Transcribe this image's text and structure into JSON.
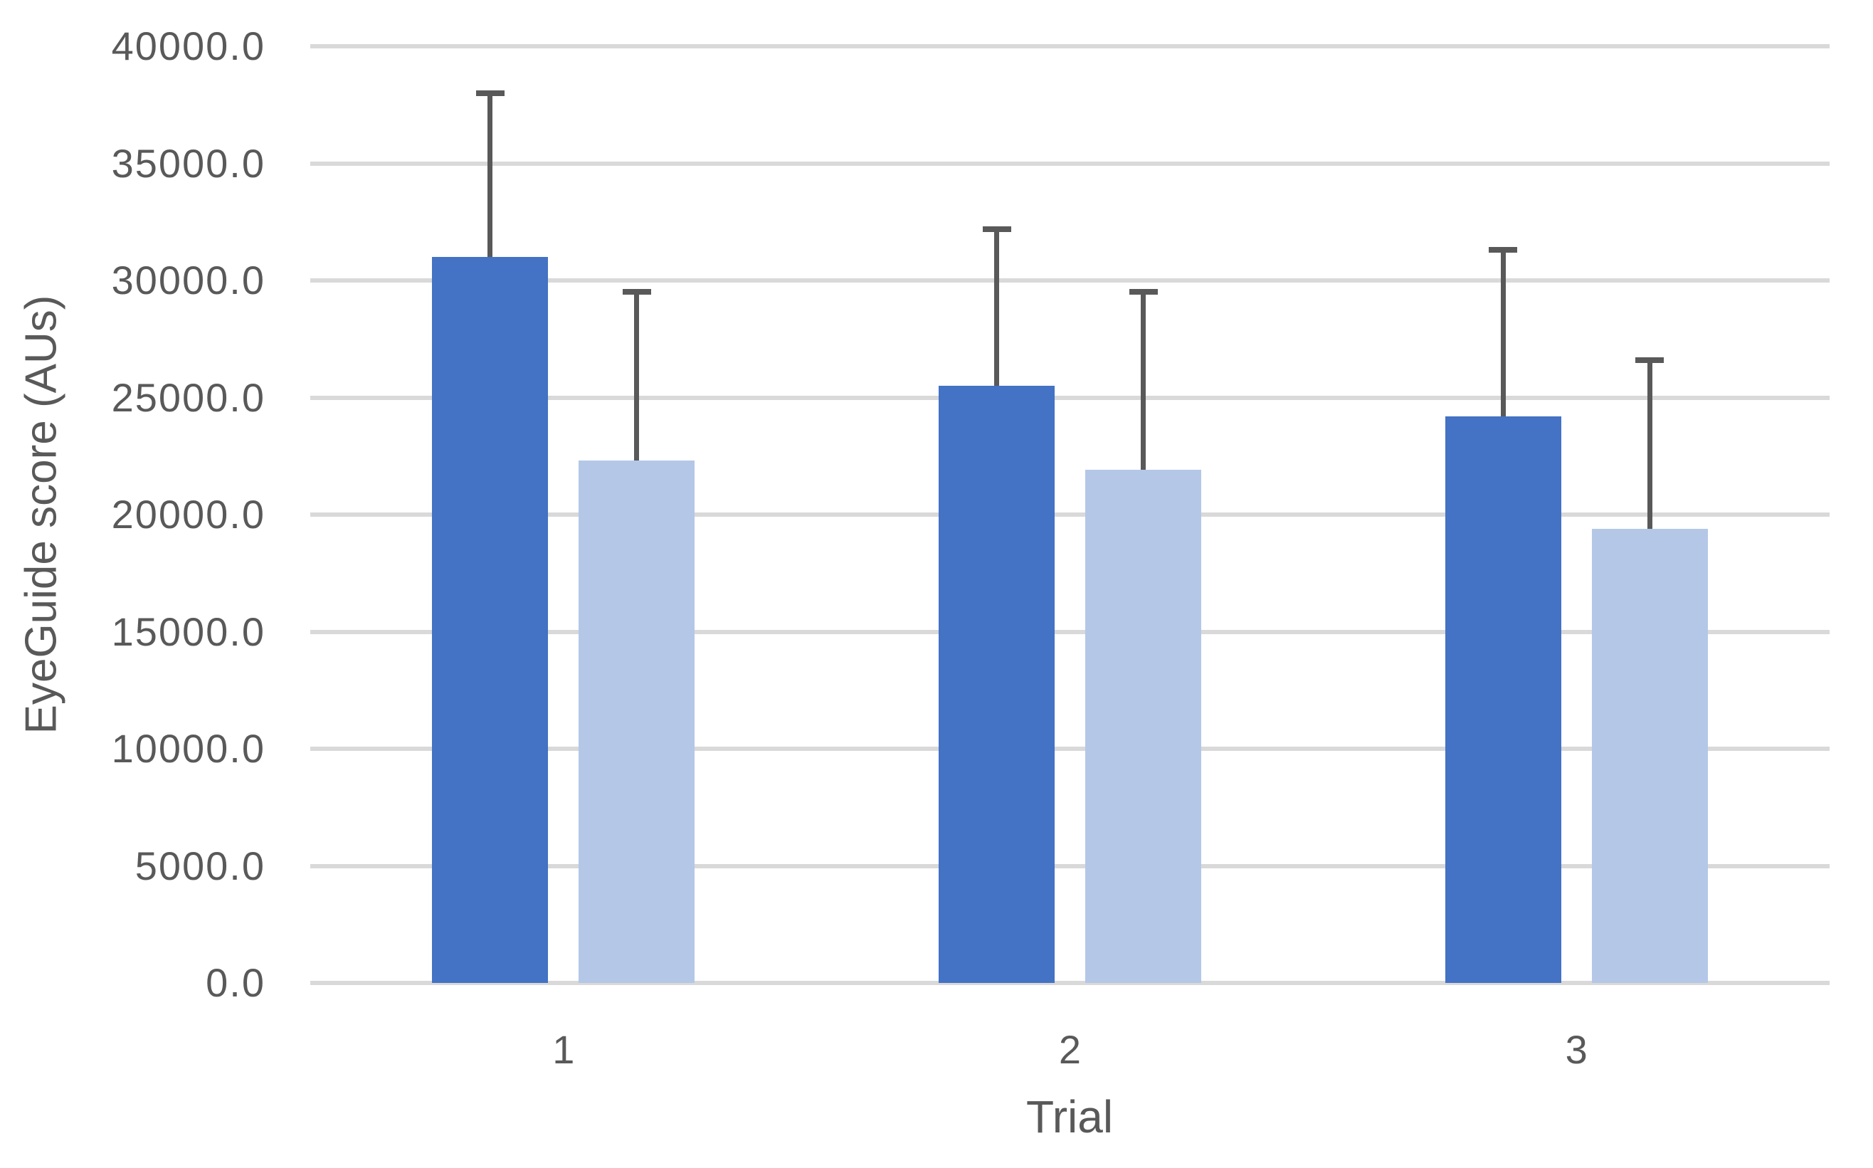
{
  "chart_data": {
    "type": "bar",
    "title": "",
    "xlabel": "Trial",
    "ylabel": "EyeGuide score (AUs)",
    "categories": [
      "1",
      "2",
      "3"
    ],
    "series": [
      {
        "name": "dark-blue",
        "color": "#4472C4",
        "values": [
          31000,
          25500,
          24200
        ],
        "error_plus": [
          7000,
          6700,
          7100
        ]
      },
      {
        "name": "light-blue",
        "color": "#B4C7E7",
        "values": [
          22300,
          21900,
          19400
        ],
        "error_plus": [
          7200,
          7600,
          7200
        ]
      }
    ],
    "ylim": [
      0,
      40000
    ],
    "ytick_step": 5000,
    "ytick_labels": [
      "0.0",
      "5000.0",
      "10000.0",
      "15000.0",
      "20000.0",
      "25000.0",
      "30000.0",
      "35000.0",
      "40000.0"
    ],
    "grid": true,
    "legend": "none",
    "gridline_color": "#D9D9D9",
    "errorbar_color": "#595959",
    "text_color": "#595959",
    "background_color": "#FFFFFF"
  }
}
